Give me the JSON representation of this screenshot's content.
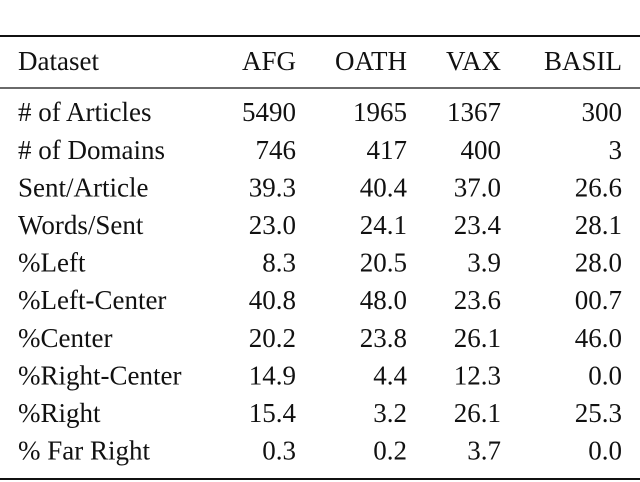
{
  "table": {
    "header": [
      "Dataset",
      "AFG",
      "OATH",
      "VAX",
      "BASIL"
    ],
    "rows": [
      [
        "# of Articles",
        "5490",
        "1965",
        "1367",
        "300"
      ],
      [
        "# of Domains",
        "746",
        "417",
        "400",
        "3"
      ],
      [
        "Sent/Article",
        "39.3",
        "40.4",
        "37.0",
        "26.6"
      ],
      [
        "Words/Sent",
        "23.0",
        "24.1",
        "23.4",
        "28.1"
      ],
      [
        "%Left",
        "8.3",
        "20.5",
        "3.9",
        "28.0"
      ],
      [
        "%Left-Center",
        "40.8",
        "48.0",
        "23.6",
        "00.7"
      ],
      [
        "%Center",
        "20.2",
        "23.8",
        "26.1",
        "46.0"
      ],
      [
        "%Right-Center",
        "14.9",
        "4.4",
        "12.3",
        "0.0"
      ],
      [
        "%Right",
        "15.4",
        "3.2",
        "26.1",
        "25.3"
      ],
      [
        "% Far Right",
        "0.3",
        "0.2",
        "3.7",
        "0.0"
      ]
    ]
  }
}
